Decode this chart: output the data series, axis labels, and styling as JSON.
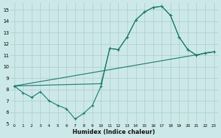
{
  "xlabel": "Humidex (Indice chaleur)",
  "bg_color": "#cce8e8",
  "grid_color": "#b0cfcf",
  "line_color": "#1a7a6e",
  "xlim": [
    -0.5,
    23.5
  ],
  "ylim": [
    5,
    15.6
  ],
  "yticks": [
    5,
    6,
    7,
    8,
    9,
    10,
    11,
    12,
    13,
    14,
    15
  ],
  "xticks": [
    0,
    1,
    2,
    3,
    4,
    5,
    6,
    7,
    8,
    9,
    10,
    11,
    12,
    13,
    14,
    15,
    16,
    17,
    18,
    19,
    20,
    21,
    22,
    23
  ],
  "line1_x": [
    0,
    1,
    2,
    3,
    4,
    5,
    6,
    7,
    8,
    9,
    10,
    11,
    12,
    13,
    14,
    15,
    16,
    17,
    18,
    19,
    20,
    21,
    22,
    23
  ],
  "line1_y": [
    8.3,
    7.7,
    7.3,
    7.8,
    7.0,
    6.6,
    6.3,
    5.4,
    5.9,
    6.6,
    8.3,
    11.6,
    11.5,
    12.6,
    14.1,
    14.8,
    15.2,
    15.3,
    14.5,
    12.6,
    11.5,
    11.0,
    11.2,
    11.3
  ],
  "line2_x": [
    0,
    10,
    11,
    12,
    13,
    14,
    15,
    16,
    17,
    18,
    19,
    20,
    21,
    22,
    23
  ],
  "line2_y": [
    8.3,
    8.5,
    11.6,
    11.5,
    12.6,
    14.1,
    14.8,
    15.2,
    15.3,
    14.5,
    12.6,
    11.5,
    11.0,
    11.2,
    11.3
  ],
  "line3_x": [
    0,
    23
  ],
  "line3_y": [
    8.3,
    11.3
  ]
}
